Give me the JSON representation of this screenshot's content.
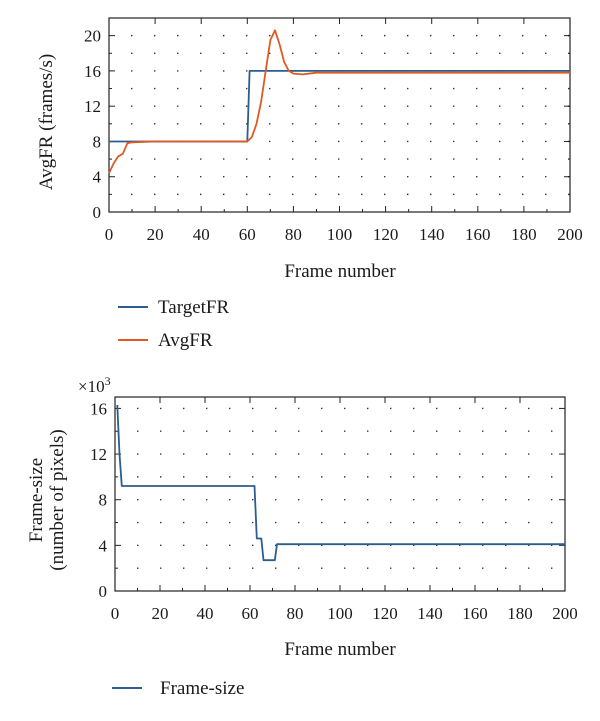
{
  "chart_data": [
    {
      "type": "line",
      "xlabel": "Frame number",
      "ylabel": "AvgFR (frames/s)",
      "xlim": [
        0,
        200
      ],
      "ylim": [
        0,
        22
      ],
      "xticks": [
        0,
        20,
        40,
        60,
        80,
        100,
        120,
        140,
        160,
        180,
        200
      ],
      "yticks": [
        0,
        4,
        8,
        12,
        16,
        20
      ],
      "grid": "dotted",
      "legend_placement": "below",
      "series": [
        {
          "name": "TargetFR",
          "color": "#2b5d8f",
          "x": [
            0,
            60,
            61,
            200
          ],
          "y": [
            8,
            8,
            16,
            16
          ]
        },
        {
          "name": "AvgFR",
          "color": "#e05a1f",
          "x": [
            0,
            2,
            4,
            6,
            8,
            10,
            20,
            40,
            60,
            62,
            64,
            66,
            68,
            70,
            72,
            74,
            76,
            78,
            80,
            84,
            90,
            100,
            120,
            140,
            160,
            180,
            200
          ],
          "y": [
            4.4,
            5.5,
            6.3,
            6.6,
            7.8,
            7.9,
            8,
            8,
            8,
            8.5,
            10,
            12.5,
            16,
            19.5,
            20.6,
            19,
            17,
            16,
            15.7,
            15.6,
            15.8,
            15.8,
            15.8,
            15.8,
            15.8,
            15.8,
            15.8
          ]
        }
      ]
    },
    {
      "type": "line",
      "xlabel": "Frame number",
      "ylabel_line1": "Frame-size",
      "ylabel_line2": "(number of pixels)",
      "y_multiplier_base": "×10",
      "y_multiplier_exp": "3",
      "xlim": [
        0,
        200
      ],
      "ylim": [
        0,
        17
      ],
      "xticks": [
        0,
        20,
        40,
        60,
        80,
        100,
        120,
        140,
        160,
        180,
        200
      ],
      "yticks": [
        0,
        4,
        8,
        12,
        16
      ],
      "grid": "dotted",
      "legend_placement": "below",
      "series": [
        {
          "name": "Frame-size",
          "color": "#2b5d8f",
          "x": [
            1,
            2,
            3,
            62,
            63,
            64,
            65,
            66,
            67,
            71,
            72,
            200
          ],
          "y": [
            16.3,
            12,
            9.2,
            9.2,
            4.6,
            4.6,
            4.6,
            2.7,
            2.7,
            2.7,
            4.1,
            4.1
          ]
        }
      ]
    }
  ]
}
